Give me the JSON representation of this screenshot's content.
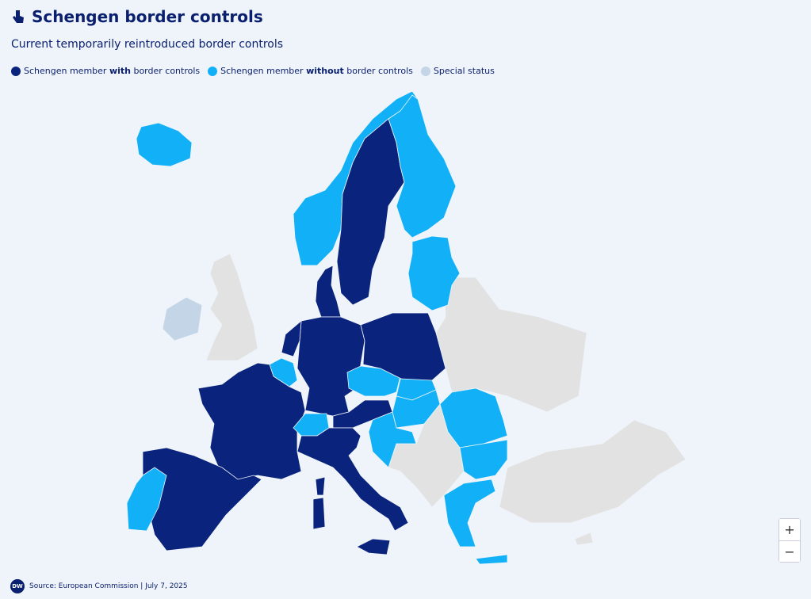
{
  "header": {
    "title": "Schengen border controls",
    "subtitle": "Current temporarily reintroduced border controls"
  },
  "legend": {
    "items": [
      {
        "parts": [
          "Schengen member ",
          "with",
          " border controls"
        ]
      },
      {
        "parts": [
          "Schengen member ",
          "without",
          " border controls"
        ]
      },
      {
        "parts": [
          "Special status"
        ]
      }
    ]
  },
  "zoom": {
    "in": "+",
    "out": "−"
  },
  "footer": {
    "logo": "DW",
    "source": "Source: European Commission | July 7, 2025"
  }
}
